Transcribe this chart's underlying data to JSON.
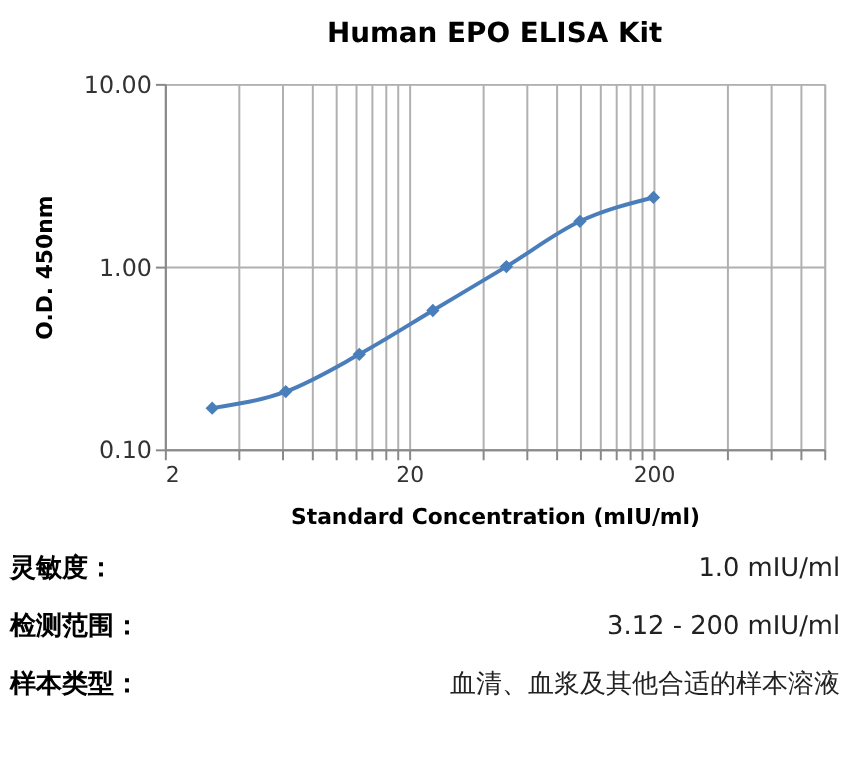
{
  "chart_data": {
    "type": "line",
    "title": "Human EPO ELISA Kit",
    "xlabel": "Standard Concentration (mIU/ml)",
    "ylabel": "O.D.    450nm",
    "x": [
      3.125,
      6.25,
      12.5,
      25,
      50,
      100,
      200
    ],
    "series": [
      {
        "color": "#4a7ebb",
        "values": [
          0.168,
          0.207,
          0.331,
          0.575,
          1.0,
          1.77,
          2.39
        ]
      }
    ],
    "log": "xy",
    "xlim": [
      2,
      1000
    ],
    "ylim": [
      0.1,
      10
    ],
    "xticks": [
      2,
      {
        "value": 4,
        "label": null
      },
      {
        "value": 6,
        "label": null
      },
      {
        "value": 8,
        "label": null
      },
      {
        "value": 10,
        "label": null
      },
      {
        "value": 12,
        "label": null
      },
      {
        "value": 14,
        "label": null
      },
      {
        "value": 16,
        "label": null
      },
      {
        "value": 18,
        "label": null
      },
      20,
      {
        "value": 40,
        "label": null
      },
      {
        "value": 60,
        "label": null
      },
      {
        "value": 80,
        "label": null
      },
      {
        "value": 100,
        "label": null
      },
      {
        "value": 120,
        "label": null
      },
      {
        "value": 140,
        "label": null
      },
      {
        "value": 160,
        "label": null
      },
      {
        "value": 180,
        "label": null
      },
      200,
      {
        "value": 400,
        "label": null
      },
      {
        "value": 600,
        "label": null
      },
      {
        "value": 800,
        "label": null
      },
      {
        "value": 1000,
        "label": null
      }
    ],
    "yticks": [
      {
        "value": 0.1,
        "label": "0.10"
      },
      {
        "value": 1,
        "label": "1.00"
      },
      {
        "value": 10,
        "label": "10.00"
      }
    ],
    "grid": true,
    "marker": "diamond",
    "line_style": "solid",
    "annotations": [
      "灵敏度：",
      "1.0 mIU/ml",
      "检测范围：",
      "3.12 - 200 mIU/ml",
      "样本类型：",
      "血清、血浆及其他合适的样本溶液"
    ]
  }
}
